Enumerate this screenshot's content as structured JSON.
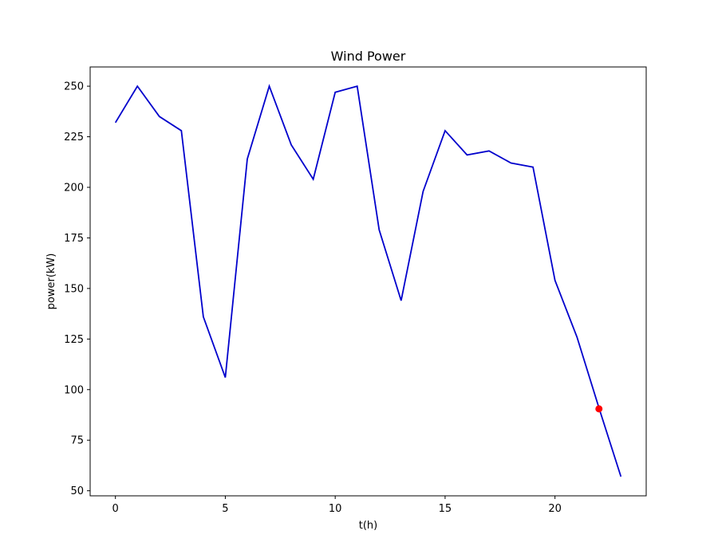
{
  "chart_data": {
    "type": "line",
    "title": "Wind Power",
    "xlabel": "t(h)",
    "ylabel": "power(kW)",
    "xlim": [
      -1.15,
      24.15
    ],
    "ylim": [
      47.5,
      259.5
    ],
    "x_ticks": [
      0,
      5,
      10,
      15,
      20
    ],
    "y_ticks": [
      50,
      75,
      100,
      125,
      150,
      175,
      200,
      225,
      250
    ],
    "grid": false,
    "legend": "none",
    "series": [
      {
        "color": "#0000cc",
        "x": [
          0,
          1,
          2,
          3,
          4,
          5,
          6,
          7,
          8,
          9,
          10,
          11,
          12,
          13,
          14,
          15,
          16,
          17,
          18,
          19,
          20,
          21,
          22,
          23
        ],
        "y": [
          232,
          250,
          235,
          228,
          136,
          106,
          214,
          250,
          221,
          204,
          247,
          250,
          179,
          144,
          198,
          228,
          216,
          218,
          212,
          210,
          154,
          126,
          91,
          57
        ]
      }
    ],
    "highlight_points": [
      {
        "x": 22,
        "y": 90.5,
        "color": "#ff0000"
      }
    ]
  }
}
